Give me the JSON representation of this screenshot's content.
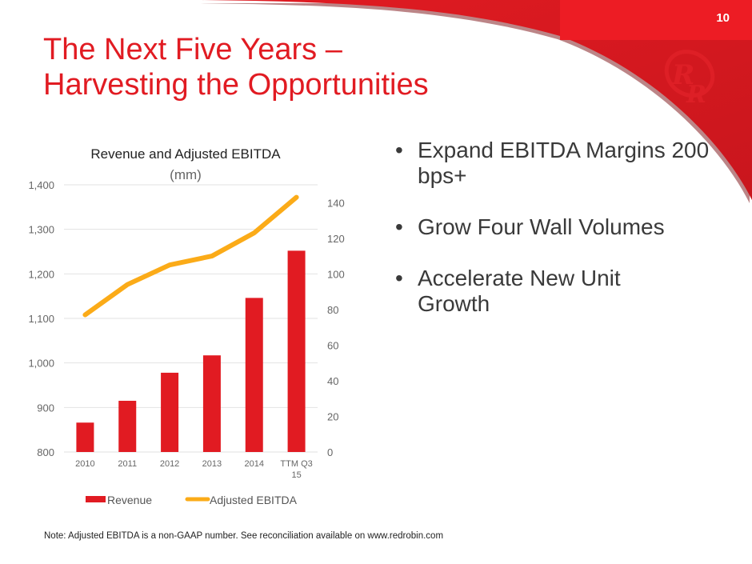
{
  "slide": {
    "page_number": "10",
    "title_line1": "The Next Five Years –",
    "title_line2": "Harvesting the Opportunities",
    "bullets": [
      "Expand EBITDA Margins 200 bps+",
      "Grow Four Wall Volumes",
      "Accelerate New Unit Growth"
    ],
    "note": "Note: Adjusted EBITDA is a non-GAAP number.  See reconciliation available on www.redrobin.com",
    "logo_text": "RR",
    "colors": {
      "brand_red": "#e11b22",
      "line_orange": "#fbab18"
    }
  },
  "chart_data": {
    "type": "bar",
    "title": "Revenue and Adjusted EBITDA",
    "subtitle": "(mm)",
    "categories": [
      "2010",
      "2011",
      "2012",
      "2013",
      "2014",
      "TTM Q3 15"
    ],
    "category_lines": [
      [
        "2010"
      ],
      [
        "2011"
      ],
      [
        "2012"
      ],
      [
        "2013"
      ],
      [
        "2014"
      ],
      [
        "TTM Q3",
        "15"
      ]
    ],
    "series": [
      {
        "name": "Revenue",
        "type": "bar",
        "axis": "left",
        "color": "#e11b22",
        "values": [
          866,
          915,
          978,
          1017,
          1146,
          1252
        ]
      },
      {
        "name": "Adjusted EBITDA",
        "type": "line",
        "axis": "right",
        "color": "#fbab18",
        "values": [
          77,
          94,
          105,
          110,
          123,
          143
        ]
      }
    ],
    "y_left": {
      "min": 800,
      "max": 1400,
      "ticks": [
        "800",
        "900",
        "1,000",
        "1,100",
        "1,200",
        "1,300",
        "1,400"
      ]
    },
    "y_right": {
      "min": 0,
      "max": 150,
      "ticks": [
        "0",
        "20",
        "40",
        "60",
        "80",
        "100",
        "120",
        "140"
      ]
    },
    "grid": true,
    "legend": "bottom"
  }
}
